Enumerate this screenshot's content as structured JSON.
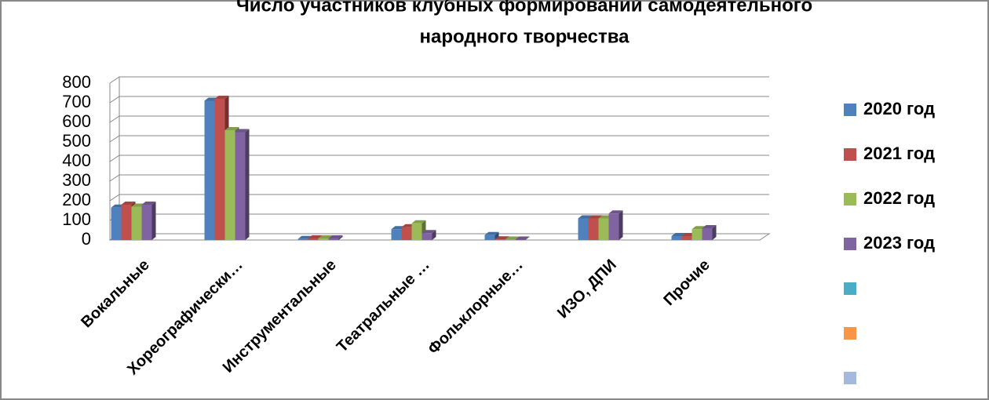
{
  "chart_data": {
    "type": "bar3d",
    "title": [
      "Число участников клубных формирований самодеятельного",
      "народного творчества"
    ],
    "categories": [
      "Вокальные",
      "Хореографически…",
      "Инструментальные",
      "Театральные …",
      "Фольклорные…",
      "ИЗО, ДПИ",
      "Прочие"
    ],
    "series": [
      {
        "name": "2020 год",
        "color": "#4f81bd",
        "values": [
          165,
          710,
          5,
          55,
          25,
          110,
          20
        ]
      },
      {
        "name": "2021 год",
        "color": "#c0504d",
        "values": [
          180,
          720,
          8,
          65,
          3,
          110,
          20
        ]
      },
      {
        "name": "2022 год",
        "color": "#9bbb59",
        "values": [
          170,
          560,
          8,
          85,
          2,
          110,
          55
        ]
      },
      {
        "name": "2023 год",
        "color": "#8064a2",
        "values": [
          180,
          550,
          8,
          35,
          2,
          135,
          60
        ]
      }
    ],
    "ylim": [
      0,
      800
    ],
    "yticks": [
      0,
      100,
      200,
      300,
      400,
      500,
      600,
      700,
      800
    ],
    "grid": true
  }
}
